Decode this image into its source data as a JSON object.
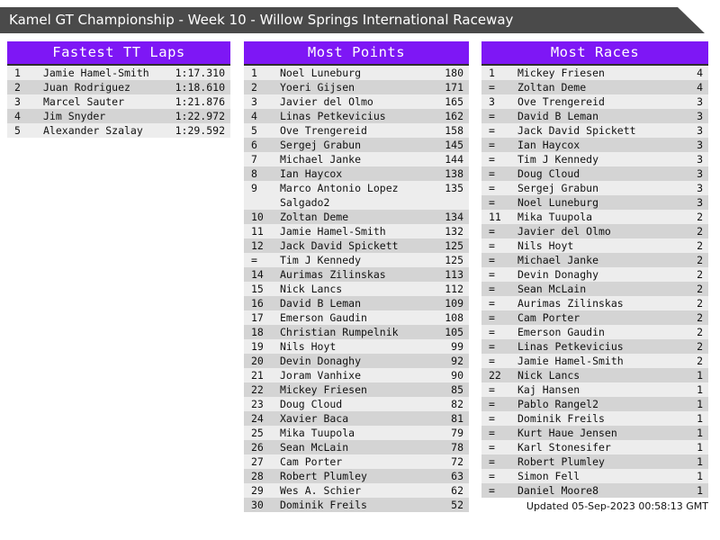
{
  "banner": {
    "title": "Kamel GT Championship - Week 10 - Willow Springs International Raceway"
  },
  "colors": {
    "accent_purple": "#7e17f5",
    "banner_gray": "#4a4a4a",
    "row_light": "#ededed",
    "row_dark": "#d4d4d4"
  },
  "panels": [
    {
      "title": "Fastest TT Laps",
      "rows": [
        {
          "rank": "1",
          "name": "Jamie Hamel-Smith",
          "value": "1:17.310"
        },
        {
          "rank": "2",
          "name": "Juan Rodriguez",
          "value": "1:18.610"
        },
        {
          "rank": "3",
          "name": "Marcel Sauter",
          "value": "1:21.876"
        },
        {
          "rank": "4",
          "name": "Jim Snyder",
          "value": "1:22.972"
        },
        {
          "rank": "5",
          "name": "Alexander Szalay",
          "value": "1:29.592"
        }
      ]
    },
    {
      "title": "Most Points",
      "rows": [
        {
          "rank": "1",
          "name": "Noel Luneburg",
          "value": "180"
        },
        {
          "rank": "2",
          "name": "Yoeri Gijsen",
          "value": "171"
        },
        {
          "rank": "3",
          "name": "Javier del Olmo",
          "value": "165"
        },
        {
          "rank": "4",
          "name": "Linas Petkevicius",
          "value": "162"
        },
        {
          "rank": "5",
          "name": "Ove Trengereid",
          "value": "158"
        },
        {
          "rank": "6",
          "name": "Sergej Grabun",
          "value": "145"
        },
        {
          "rank": "7",
          "name": "Michael Janke",
          "value": "144"
        },
        {
          "rank": "8",
          "name": "Ian Haycox",
          "value": "138"
        },
        {
          "rank": "9",
          "name": "Marco Antonio Lopez Salgado2",
          "value": "135"
        },
        {
          "rank": "10",
          "name": "Zoltan Deme",
          "value": "134"
        },
        {
          "rank": "11",
          "name": "Jamie Hamel-Smith",
          "value": "132"
        },
        {
          "rank": "12",
          "name": "Jack David Spickett",
          "value": "125"
        },
        {
          "rank": "=",
          "name": "Tim J Kennedy",
          "value": "125"
        },
        {
          "rank": "14",
          "name": "Aurimas Zilinskas",
          "value": "113"
        },
        {
          "rank": "15",
          "name": "Nick Lancs",
          "value": "112"
        },
        {
          "rank": "16",
          "name": "David B Leman",
          "value": "109"
        },
        {
          "rank": "17",
          "name": "Emerson Gaudin",
          "value": "108"
        },
        {
          "rank": "18",
          "name": "Christian Rumpelnik",
          "value": "105"
        },
        {
          "rank": "19",
          "name": "Nils Hoyt",
          "value": "99"
        },
        {
          "rank": "20",
          "name": "Devin Donaghy",
          "value": "92"
        },
        {
          "rank": "21",
          "name": "Joram Vanhixe",
          "value": "90"
        },
        {
          "rank": "22",
          "name": "Mickey Friesen",
          "value": "85"
        },
        {
          "rank": "23",
          "name": "Doug Cloud",
          "value": "82"
        },
        {
          "rank": "24",
          "name": "Xavier Baca",
          "value": "81"
        },
        {
          "rank": "25",
          "name": "Mika Tuupola",
          "value": "79"
        },
        {
          "rank": "26",
          "name": "Sean McLain",
          "value": "78"
        },
        {
          "rank": "27",
          "name": "Cam Porter",
          "value": "72"
        },
        {
          "rank": "28",
          "name": "Robert Plumley",
          "value": "63"
        },
        {
          "rank": "29",
          "name": "Wes A. Schier",
          "value": "62"
        },
        {
          "rank": "30",
          "name": "Dominik Freils",
          "value": "52"
        }
      ]
    },
    {
      "title": "Most Races",
      "rows": [
        {
          "rank": "1",
          "name": "Mickey Friesen",
          "value": "4"
        },
        {
          "rank": "=",
          "name": "Zoltan Deme",
          "value": "4"
        },
        {
          "rank": "3",
          "name": "Ove Trengereid",
          "value": "3"
        },
        {
          "rank": "=",
          "name": "David B Leman",
          "value": "3"
        },
        {
          "rank": "=",
          "name": "Jack David Spickett",
          "value": "3"
        },
        {
          "rank": "=",
          "name": "Ian Haycox",
          "value": "3"
        },
        {
          "rank": "=",
          "name": "Tim J Kennedy",
          "value": "3"
        },
        {
          "rank": "=",
          "name": "Doug Cloud",
          "value": "3"
        },
        {
          "rank": "=",
          "name": "Sergej Grabun",
          "value": "3"
        },
        {
          "rank": "=",
          "name": "Noel Luneburg",
          "value": "3"
        },
        {
          "rank": "11",
          "name": "Mika Tuupola",
          "value": "2"
        },
        {
          "rank": "=",
          "name": "Javier del Olmo",
          "value": "2"
        },
        {
          "rank": "=",
          "name": "Nils Hoyt",
          "value": "2"
        },
        {
          "rank": "=",
          "name": "Michael Janke",
          "value": "2"
        },
        {
          "rank": "=",
          "name": "Devin Donaghy",
          "value": "2"
        },
        {
          "rank": "=",
          "name": "Sean McLain",
          "value": "2"
        },
        {
          "rank": "=",
          "name": "Aurimas Zilinskas",
          "value": "2"
        },
        {
          "rank": "=",
          "name": "Cam Porter",
          "value": "2"
        },
        {
          "rank": "=",
          "name": "Emerson Gaudin",
          "value": "2"
        },
        {
          "rank": "=",
          "name": "Linas Petkevicius",
          "value": "2"
        },
        {
          "rank": "=",
          "name": "Jamie Hamel-Smith",
          "value": "2"
        },
        {
          "rank": "22",
          "name": "Nick Lancs",
          "value": "1"
        },
        {
          "rank": "=",
          "name": "Kaj Hansen",
          "value": "1"
        },
        {
          "rank": "=",
          "name": "Pablo Rangel2",
          "value": "1"
        },
        {
          "rank": "=",
          "name": "Dominik Freils",
          "value": "1"
        },
        {
          "rank": "=",
          "name": "Kurt Haue Jensen",
          "value": "1"
        },
        {
          "rank": "=",
          "name": "Karl Stonesifer",
          "value": "1"
        },
        {
          "rank": "=",
          "name": "Robert Plumley",
          "value": "1"
        },
        {
          "rank": "=",
          "name": "Simon Fell",
          "value": "1"
        },
        {
          "rank": "=",
          "name": "Daniel Moore8",
          "value": "1"
        }
      ]
    }
  ],
  "footer": {
    "updated": "Updated 05-Sep-2023 00:58:13 GMT"
  }
}
